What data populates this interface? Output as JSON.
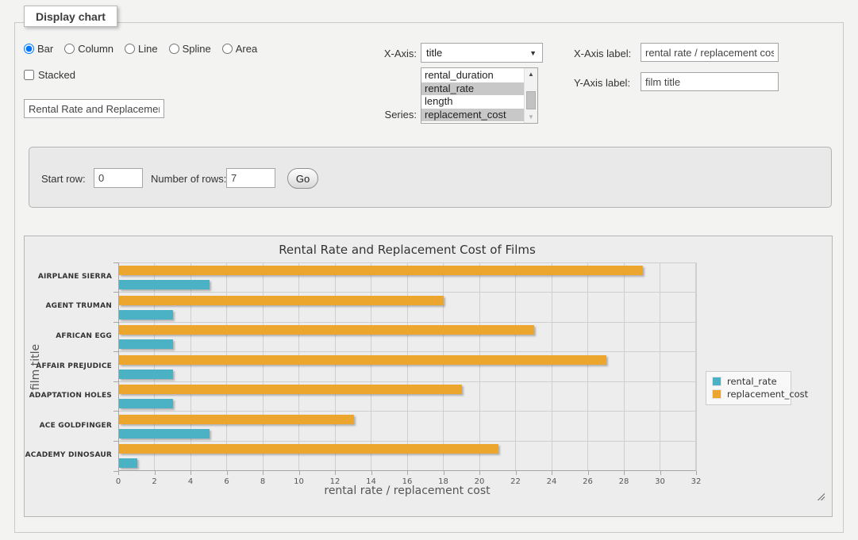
{
  "panel": {
    "title": "Display chart"
  },
  "controls": {
    "chart_types": {
      "options": [
        "Bar",
        "Column",
        "Line",
        "Spline",
        "Area"
      ],
      "selected": "Bar"
    },
    "stacked": {
      "label": "Stacked",
      "checked": false
    },
    "title_input": {
      "value": "Rental Rate and Replacement Cost of Films"
    },
    "x_axis": {
      "label": "X-Axis:",
      "selected": "title"
    },
    "series": {
      "label": "Series:",
      "options": [
        "rental_duration",
        "rental_rate",
        "length",
        "replacement_cost"
      ],
      "selected": [
        "rental_rate",
        "replacement_cost"
      ]
    },
    "x_axis_label": {
      "label": "X-Axis label:",
      "value": "rental rate / replacement cost"
    },
    "y_axis_label": {
      "label": "Y-Axis label:",
      "value": "film title"
    },
    "rows": {
      "start_row_label": "Start row:",
      "start_row_value": "0",
      "num_rows_label": "Number of rows:",
      "num_rows_value": "7",
      "go_label": "Go"
    }
  },
  "chart_data": {
    "type": "bar",
    "orientation": "horizontal",
    "title": "Rental Rate and Replacement Cost of Films",
    "xlabel": "rental rate / replacement cost",
    "ylabel": "film title",
    "categories": [
      "AIRPLANE SIERRA",
      "AGENT TRUMAN",
      "AFRICAN EGG",
      "AFFAIR PREJUDICE",
      "ADAPTATION HOLES",
      "ACE GOLDFINGER",
      "ACADEMY DINOSAUR"
    ],
    "series": [
      {
        "name": "rental_rate",
        "color": "#4bb2c5",
        "values": [
          4.99,
          2.99,
          2.99,
          2.99,
          2.99,
          4.99,
          0.99
        ]
      },
      {
        "name": "replacement_cost",
        "color": "#eda62d",
        "values": [
          28.99,
          17.99,
          22.99,
          26.99,
          18.99,
          12.99,
          20.99
        ]
      }
    ],
    "series_draw_order_per_category": [
      "replacement_cost",
      "rental_rate"
    ],
    "xlim": [
      0,
      32
    ],
    "x_ticks": [
      0,
      2,
      4,
      6,
      8,
      10,
      12,
      14,
      16,
      18,
      20,
      22,
      24,
      26,
      28,
      30,
      32
    ],
    "grid": true,
    "legend_position": "right"
  }
}
